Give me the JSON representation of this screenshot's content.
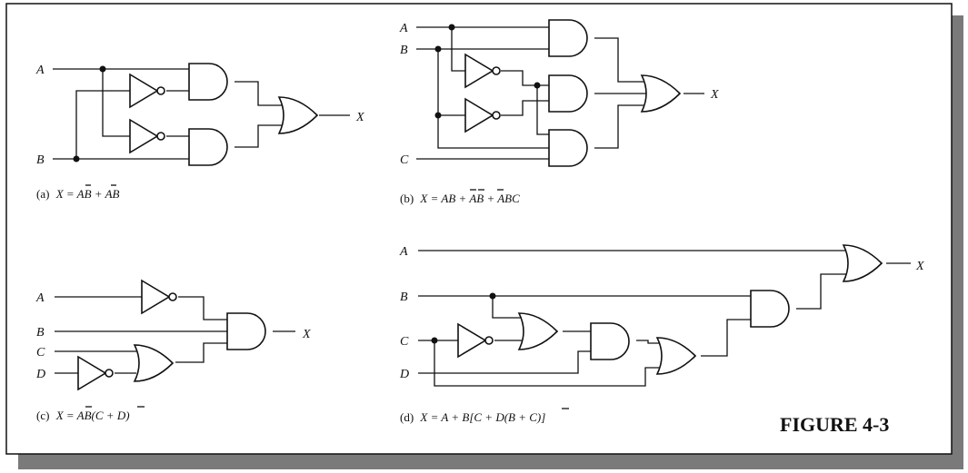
{
  "figure_label": "FIGURE 4-3",
  "circuits": {
    "a": {
      "inputs": {
        "A": "A",
        "B": "B"
      },
      "output": "X",
      "caption": {
        "prefix": "(a)",
        "expr": "X = AB + AB"
      }
    },
    "b": {
      "inputs": {
        "A": "A",
        "B": "B",
        "C": "C"
      },
      "output": "X",
      "caption": {
        "prefix": "(b)",
        "expr": "X = AB + AB + ABC"
      }
    },
    "c": {
      "inputs": {
        "A": "A",
        "B": "B",
        "C": "C",
        "D": "D"
      },
      "output": "X",
      "caption": {
        "prefix": "(c)",
        "expr": "X = AB(C + D)"
      }
    },
    "d": {
      "inputs": {
        "A": "A",
        "B": "B",
        "C": "C",
        "D": "D"
      },
      "output": "X",
      "caption": {
        "prefix": "(d)",
        "expr": "X = A + B[C + D(B + C)]"
      }
    }
  }
}
